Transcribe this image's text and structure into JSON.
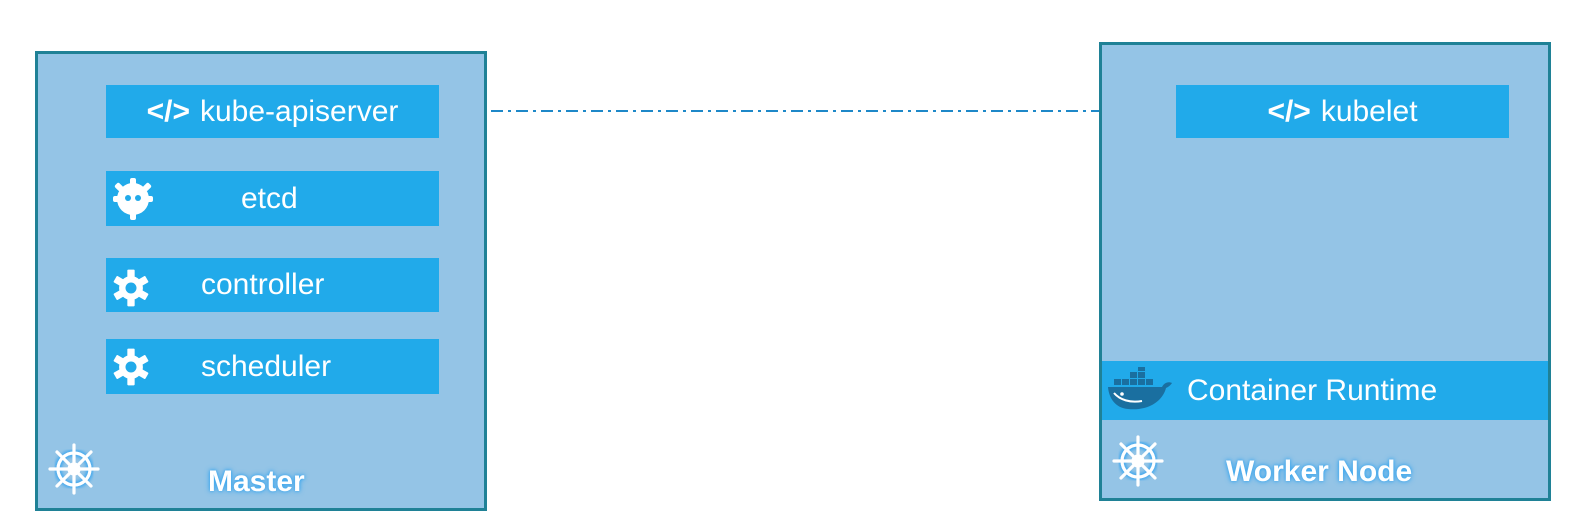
{
  "master": {
    "title": "Master",
    "components": {
      "apiserver": {
        "tag": "</>",
        "label": "kube-apiserver",
        "icon": "code-icon"
      },
      "etcd": {
        "label": "etcd",
        "icon": "etcd-icon"
      },
      "controller": {
        "label": "controller",
        "icon": "gear-icon"
      },
      "scheduler": {
        "label": "scheduler",
        "icon": "gear-icon"
      }
    },
    "icon": "kubernetes-helm-icon"
  },
  "worker": {
    "title": "Worker Node",
    "components": {
      "kubelet": {
        "tag": "</>",
        "label": "kubelet",
        "icon": "code-icon"
      },
      "runtime": {
        "label": "Container Runtime",
        "icon": "docker-whale-icon"
      }
    },
    "icon": "kubernetes-helm-icon"
  },
  "colors": {
    "box_fill": "#94c4e6",
    "box_border": "#1f8196",
    "component_fill": "#21aaea",
    "connector": "#1e88c8",
    "text": "#ffffff"
  }
}
